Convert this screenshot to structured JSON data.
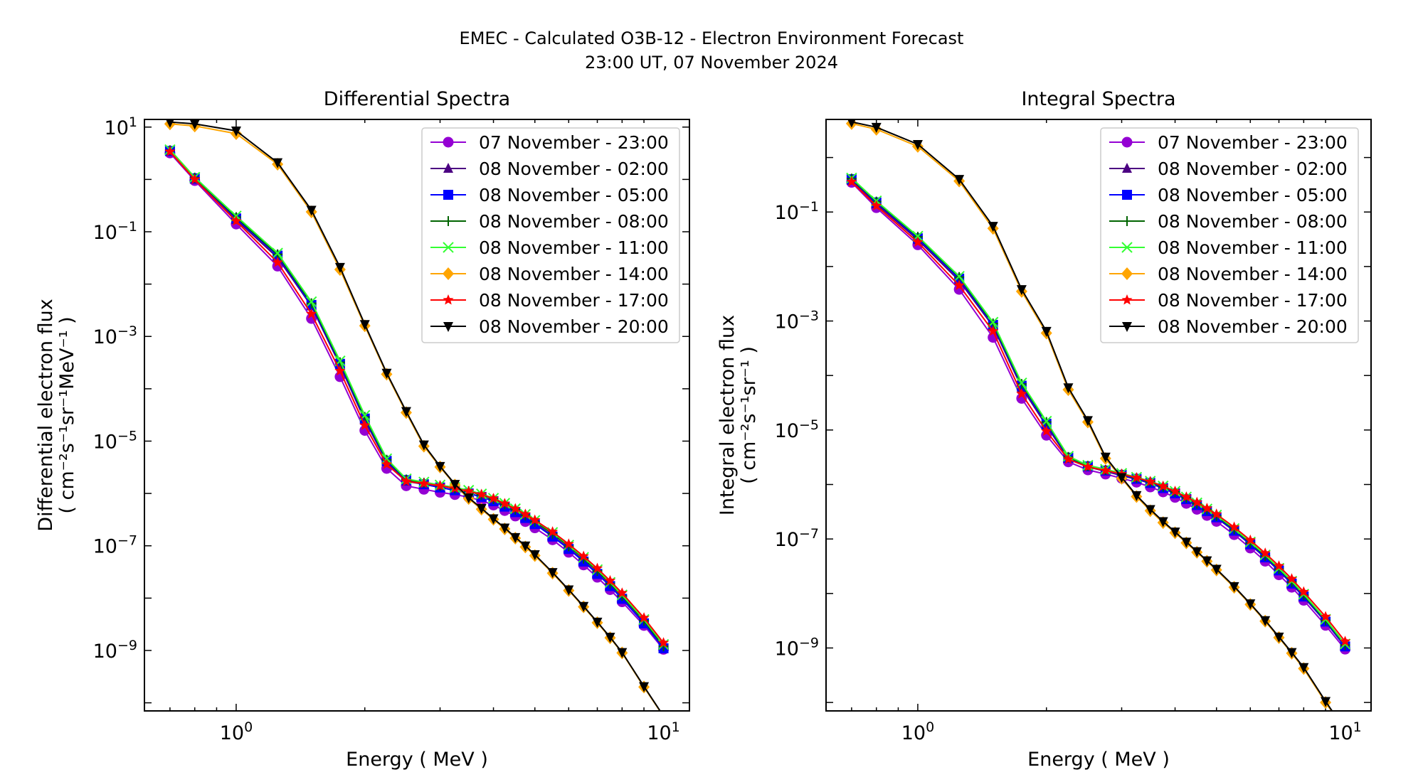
{
  "title_line1": "EMEC - Calculated O3B-12 - Electron Environment Forecast",
  "title_line2": "23:00 UT, 07 November 2024",
  "chart_data": [
    {
      "type": "line",
      "title": "Differential Spectra",
      "xlabel": "Energy ( MeV )",
      "ylabel_line1": "Differential electron flux",
      "ylabel_line2": "( cm⁻²s⁻¹sr⁻¹MeV⁻¹ )",
      "xscale": "log",
      "yscale": "log",
      "xlim": [
        0.61,
        11.5
      ],
      "ylim": [
        7e-11,
        14
      ],
      "xticks": [
        {
          "value": 1,
          "base": "10",
          "exp": "0"
        },
        {
          "value": 10,
          "base": "10",
          "exp": "1"
        }
      ],
      "yticks": [
        {
          "value": 10,
          "base": "10",
          "exp": "1"
        },
        {
          "value": 0.1,
          "base": "10",
          "exp": "−1"
        },
        {
          "value": 0.001,
          "base": "10",
          "exp": "−3"
        },
        {
          "value": 1e-05,
          "base": "10",
          "exp": "−5"
        },
        {
          "value": 1e-07,
          "base": "10",
          "exp": "−7"
        },
        {
          "value": 1e-09,
          "base": "10",
          "exp": "−9"
        }
      ],
      "legend_position": "top-right",
      "x": [
        0.7,
        0.8,
        1.0,
        1.25,
        1.5,
        1.75,
        2.0,
        2.25,
        2.5,
        2.75,
        3.0,
        3.25,
        3.5,
        3.75,
        4.0,
        4.25,
        4.5,
        4.75,
        5.0,
        5.5,
        6.0,
        6.5,
        7.0,
        7.5,
        8.0,
        9.0,
        10.0
      ],
      "series": [
        {
          "name": "07 November - 23:00",
          "color": "#9400d3",
          "marker": "circle",
          "values": [
            3.2,
            0.95,
            0.14,
            0.022,
            0.0022,
            0.00017,
            1.6e-05,
            3e-06,
            1.4e-06,
            1.2e-06,
            1.05e-06,
            9.5e-07,
            8.5e-07,
            7.3e-07,
            6e-07,
            4.7e-07,
            3.7e-07,
            2.9e-07,
            2.2e-07,
            1.3e-07,
            7.5e-08,
            4.3e-08,
            2.5e-08,
            1.45e-08,
            8.5e-09,
            3e-09,
            1.05e-09
          ]
        },
        {
          "name": "08 November - 02:00",
          "color": "#4b0082",
          "marker": "triangle-up",
          "values": [
            3.4,
            1.0,
            0.17,
            0.032,
            0.0038,
            0.00028,
            2.5e-05,
            4e-06,
            1.7e-06,
            1.5e-06,
            1.3e-06,
            1.15e-06,
            1e-06,
            8.7e-07,
            7.2e-07,
            5.7e-07,
            4.5e-07,
            3.5e-07,
            2.7e-07,
            1.55e-07,
            9e-08,
            5.2e-08,
            3e-08,
            1.75e-08,
            1e-08,
            3.4e-09,
            1.15e-09
          ]
        },
        {
          "name": "08 November - 05:00",
          "color": "#0000ff",
          "marker": "square",
          "values": [
            3.5,
            1.05,
            0.18,
            0.035,
            0.004,
            0.0003,
            2.7e-05,
            4.2e-06,
            1.8e-06,
            1.5e-06,
            1.3e-06,
            1.15e-06,
            1e-06,
            8.6e-07,
            7.1e-07,
            5.6e-07,
            4.4e-07,
            3.4e-07,
            2.6e-07,
            1.5e-07,
            8.7e-08,
            5e-08,
            2.9e-08,
            1.7e-08,
            9.7e-09,
            3.3e-09,
            1.1e-09
          ]
        },
        {
          "name": "08 November - 08:00",
          "color": "#006400",
          "marker": "plus",
          "values": [
            3.6,
            1.08,
            0.19,
            0.037,
            0.0043,
            0.00032,
            2.9e-05,
            4.4e-06,
            1.85e-06,
            1.6e-06,
            1.4e-06,
            1.25e-06,
            1.1e-06,
            9.4e-07,
            7.8e-07,
            6.2e-07,
            4.9e-07,
            3.8e-07,
            2.9e-07,
            1.7e-07,
            9.8e-08,
            5.7e-08,
            3.3e-08,
            1.9e-08,
            1.1e-08,
            3.7e-09,
            1.2e-09
          ]
        },
        {
          "name": "08 November - 11:00",
          "color": "#33ff33",
          "marker": "x",
          "values": [
            3.7,
            1.1,
            0.2,
            0.039,
            0.0046,
            0.00034,
            3.1e-05,
            4.6e-06,
            1.9e-06,
            1.65e-06,
            1.45e-06,
            1.3e-06,
            1.15e-06,
            9.8e-07,
            8.1e-07,
            6.5e-07,
            5.1e-07,
            4e-07,
            3.05e-07,
            1.8e-07,
            1.03e-07,
            6e-08,
            3.5e-08,
            2e-08,
            1.15e-08,
            3.9e-09,
            1.3e-09
          ]
        },
        {
          "name": "08 November - 14:00",
          "color": "#ffa500",
          "marker": "diamond",
          "values": [
            11.5,
            10.5,
            7.5,
            1.95,
            0.24,
            0.019,
            0.0016,
            0.00019,
            3.5e-05,
            8e-06,
            3.2e-06,
            1.45e-06,
            8e-07,
            5e-07,
            3.2e-07,
            2.1e-07,
            1.4e-07,
            9.5e-08,
            6.5e-08,
            3e-08,
            1.4e-08,
            6.8e-09,
            3.4e-09,
            1.75e-09,
            9e-10,
            2e-10,
            5.5e-11
          ]
        },
        {
          "name": "08 November - 17:00",
          "color": "#ff0000",
          "marker": "star",
          "values": [
            3.4,
            1.0,
            0.16,
            0.026,
            0.0027,
            0.00022,
            2e-05,
            3.6e-06,
            1.7e-06,
            1.55e-06,
            1.4e-06,
            1.25e-06,
            1.1e-06,
            9.6e-07,
            8e-07,
            6.4e-07,
            5.1e-07,
            4e-07,
            3.1e-07,
            1.85e-07,
            1.08e-07,
            6.3e-08,
            3.7e-08,
            2.15e-08,
            1.25e-08,
            4.2e-09,
            1.4e-09
          ]
        },
        {
          "name": "08 November - 20:00",
          "color": "#000000",
          "marker": "triangle-down",
          "values": [
            12.5,
            11.5,
            8.5,
            2.1,
            0.26,
            0.021,
            0.0017,
            0.0002,
            3.7e-05,
            8.5e-06,
            3.3e-06,
            1.5e-06,
            8.3e-07,
            5.2e-07,
            3.3e-07,
            2.2e-07,
            1.45e-07,
            1e-07,
            6.8e-08,
            3.1e-08,
            1.45e-08,
            7e-09,
            3.5e-09,
            1.8e-09,
            9.2e-10,
            2.05e-10,
            5.6e-11
          ]
        }
      ]
    },
    {
      "type": "line",
      "title": "Integral Spectra",
      "xlabel": "Energy ( MeV )",
      "ylabel_line1": "Integral electron flux",
      "ylabel_line2": "( cm⁻²s⁻¹sr⁻¹ )",
      "xscale": "log",
      "yscale": "log",
      "xlim": [
        0.61,
        11.5
      ],
      "ylim": [
        7e-11,
        5
      ],
      "xticks": [
        {
          "value": 1,
          "base": "10",
          "exp": "0"
        },
        {
          "value": 10,
          "base": "10",
          "exp": "1"
        }
      ],
      "yticks": [
        {
          "value": 0.1,
          "base": "10",
          "exp": "−1"
        },
        {
          "value": 0.001,
          "base": "10",
          "exp": "−3"
        },
        {
          "value": 1e-05,
          "base": "10",
          "exp": "−5"
        },
        {
          "value": 1e-07,
          "base": "10",
          "exp": "−7"
        },
        {
          "value": 1e-09,
          "base": "10",
          "exp": "−9"
        }
      ],
      "legend_position": "top-right",
      "x": [
        0.7,
        0.8,
        1.0,
        1.25,
        1.5,
        1.75,
        2.0,
        2.25,
        2.5,
        2.75,
        3.0,
        3.25,
        3.5,
        3.75,
        4.0,
        4.25,
        4.5,
        4.75,
        5.0,
        5.5,
        6.0,
        6.5,
        7.0,
        7.5,
        8.0,
        9.0,
        10.0
      ],
      "series": [
        {
          "name": "07 November - 23:00",
          "color": "#9400d3",
          "marker": "circle",
          "values": [
            0.35,
            0.12,
            0.025,
            0.0038,
            0.0005,
            3.8e-05,
            8e-06,
            2.6e-06,
            1.85e-06,
            1.55e-06,
            1.3e-06,
            1.1e-06,
            9e-07,
            7.3e-07,
            5.8e-07,
            4.5e-07,
            3.5e-07,
            2.7e-07,
            2.1e-07,
            1.2e-07,
            6.8e-08,
            3.9e-08,
            2.2e-08,
            1.3e-08,
            7.5e-09,
            2.6e-09,
            9.5e-10
          ]
        },
        {
          "name": "08 November - 02:00",
          "color": "#4b0082",
          "marker": "triangle-up",
          "values": [
            0.38,
            0.14,
            0.031,
            0.0055,
            0.0008,
            6e-05,
            1.2e-05,
            3e-06,
            2.1e-06,
            1.75e-06,
            1.45e-06,
            1.25e-06,
            1.05e-06,
            8.5e-07,
            6.8e-07,
            5.3e-07,
            4.1e-07,
            3.2e-07,
            2.45e-07,
            1.4e-07,
            7.9e-08,
            4.5e-08,
            2.6e-08,
            1.5e-08,
            8.6e-09,
            3e-09,
            1.05e-09
          ]
        },
        {
          "name": "08 November - 05:00",
          "color": "#0000ff",
          "marker": "square",
          "values": [
            0.4,
            0.15,
            0.033,
            0.006,
            0.00085,
            6.5e-05,
            1.3e-05,
            3.1e-06,
            2.15e-06,
            1.8e-06,
            1.5e-06,
            1.27e-06,
            1.07e-06,
            8.6e-07,
            6.9e-07,
            5.4e-07,
            4.2e-07,
            3.25e-07,
            2.5e-07,
            1.42e-07,
            8e-08,
            4.6e-08,
            2.65e-08,
            1.52e-08,
            8.8e-09,
            3.05e-09,
            1.07e-09
          ]
        },
        {
          "name": "08 November - 08:00",
          "color": "#006400",
          "marker": "plus",
          "values": [
            0.41,
            0.155,
            0.035,
            0.0064,
            0.0009,
            7e-05,
            1.4e-05,
            3.2e-06,
            2.2e-06,
            1.85e-06,
            1.55e-06,
            1.32e-06,
            1.12e-06,
            9.1e-07,
            7.3e-07,
            5.7e-07,
            4.45e-07,
            3.45e-07,
            2.65e-07,
            1.5e-07,
            8.5e-08,
            4.9e-08,
            2.8e-08,
            1.62e-08,
            9.3e-09,
            3.2e-09,
            1.13e-09
          ]
        },
        {
          "name": "08 November - 11:00",
          "color": "#33ff33",
          "marker": "x",
          "values": [
            0.42,
            0.16,
            0.036,
            0.0066,
            0.00095,
            7.3e-05,
            1.45e-05,
            3.3e-06,
            2.25e-06,
            1.9e-06,
            1.6e-06,
            1.36e-06,
            1.15e-06,
            9.4e-07,
            7.5e-07,
            5.9e-07,
            4.6e-07,
            3.55e-07,
            2.75e-07,
            1.55e-07,
            8.8e-08,
            5.1e-08,
            2.9e-08,
            1.68e-08,
            9.7e-09,
            3.35e-09,
            1.18e-09
          ]
        },
        {
          "name": "08 November - 14:00",
          "color": "#ffa500",
          "marker": "diamond",
          "values": [
            4.2,
            3.3,
            1.6,
            0.37,
            0.05,
            0.0035,
            0.0006,
            5.5e-05,
            1.4e-05,
            3e-06,
            1.3e-06,
            6e-07,
            3.3e-07,
            2e-07,
            1.3e-07,
            8.5e-08,
            5.7e-08,
            3.9e-08,
            2.7e-08,
            1.3e-08,
            6.3e-09,
            3.1e-09,
            1.55e-09,
            8e-10,
            4.2e-10,
            1e-10,
            3e-11
          ]
        },
        {
          "name": "08 November - 17:00",
          "color": "#ff0000",
          "marker": "star",
          "values": [
            0.36,
            0.13,
            0.028,
            0.0045,
            0.00065,
            4.6e-05,
            9.5e-06,
            2.9e-06,
            2.1e-06,
            1.8e-06,
            1.55e-06,
            1.33e-06,
            1.13e-06,
            9.3e-07,
            7.5e-07,
            5.9e-07,
            4.7e-07,
            3.65e-07,
            2.85e-07,
            1.65e-07,
            9.5e-08,
            5.5e-08,
            3.2e-08,
            1.85e-08,
            1.07e-08,
            3.75e-09,
            1.32e-09
          ]
        },
        {
          "name": "08 November - 20:00",
          "color": "#000000",
          "marker": "triangle-down",
          "values": [
            4.5,
            3.6,
            1.75,
            0.4,
            0.055,
            0.0038,
            0.00065,
            6e-05,
            1.5e-05,
            3.2e-06,
            1.35e-06,
            6.3e-07,
            3.5e-07,
            2.1e-07,
            1.35e-07,
            8.8e-08,
            5.9e-08,
            4e-08,
            2.8e-08,
            1.35e-08,
            6.5e-09,
            3.2e-09,
            1.6e-09,
            8.3e-10,
            4.4e-10,
            1.05e-10,
            3.1e-11
          ]
        }
      ]
    }
  ]
}
